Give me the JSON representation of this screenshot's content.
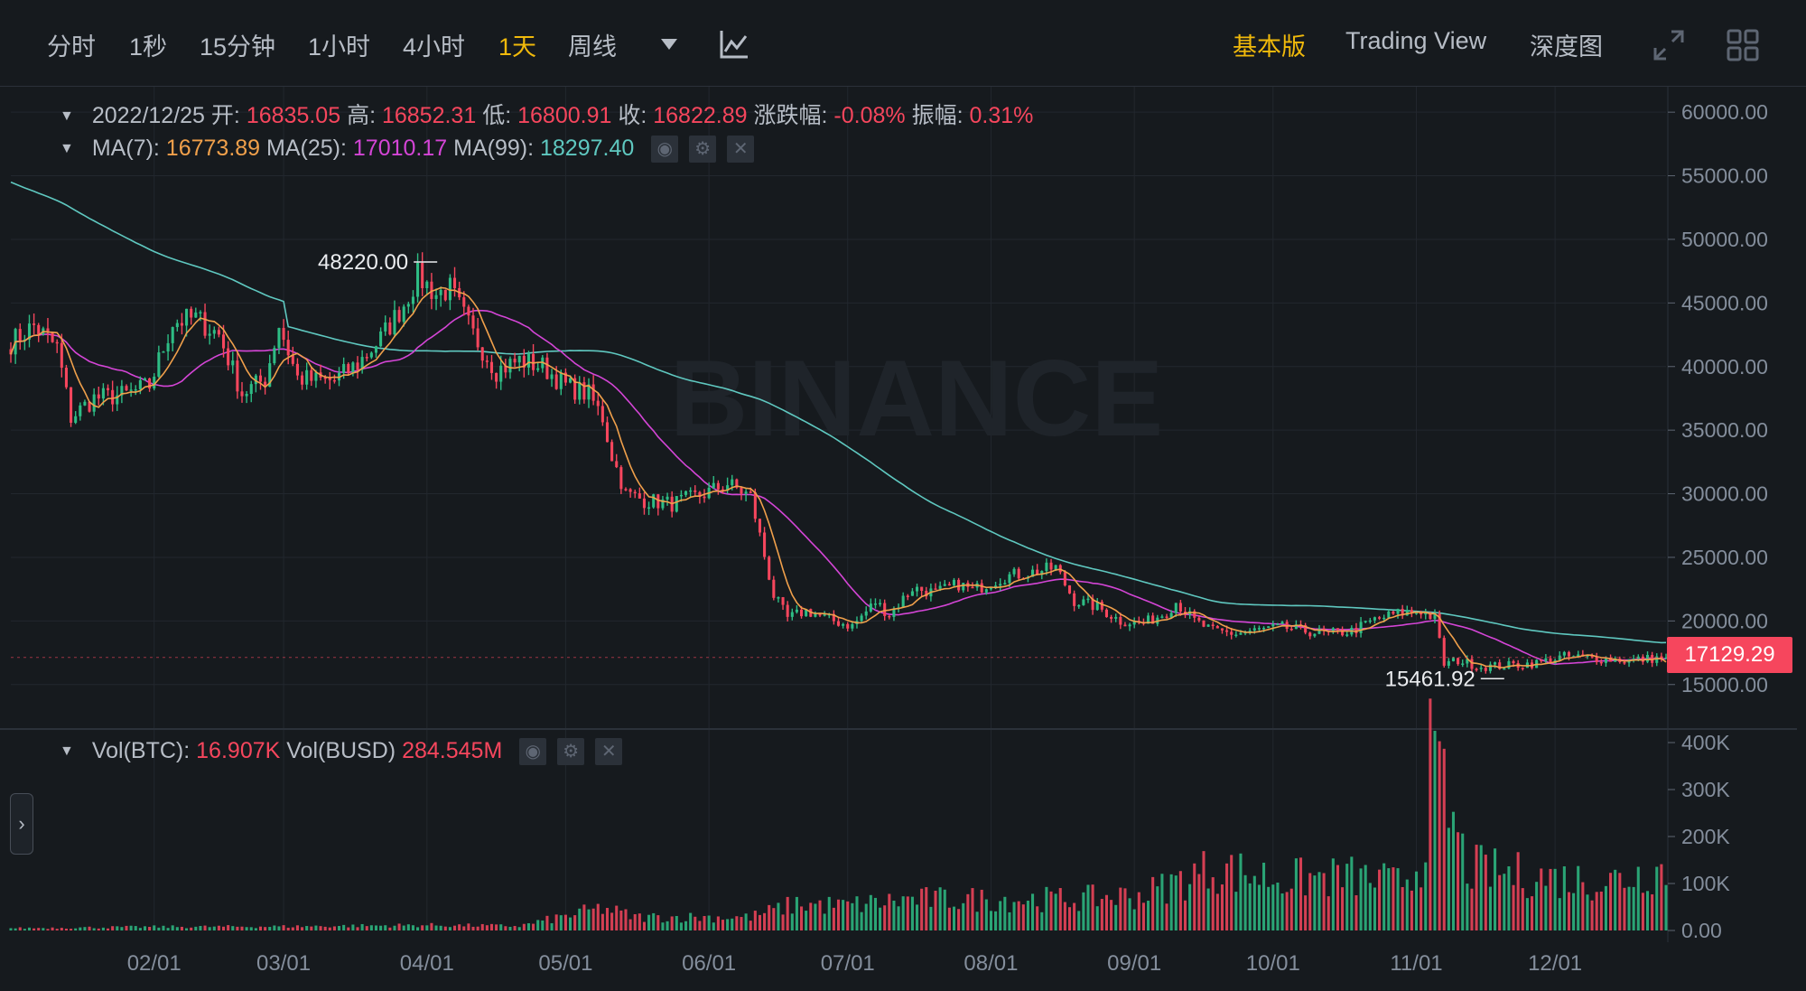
{
  "toolbar": {
    "timeframes": [
      "分时",
      "1秒",
      "15分钟",
      "1小时",
      "4小时",
      "1天",
      "周线"
    ],
    "active_timeframe": "1天",
    "views": [
      "基本版",
      "Trading View",
      "深度图"
    ],
    "active_view": "基本版",
    "icons": [
      "dropdown-caret-icon",
      "indicator-icon",
      "fullscreen-icon",
      "grid-layout-icon"
    ]
  },
  "ohlc": {
    "date": "2022/12/25",
    "open_label": "开:",
    "open": "16835.05",
    "high_label": "高:",
    "high": "16852.31",
    "low_label": "低:",
    "low": "16800.91",
    "close_label": "收:",
    "close": "16822.89",
    "change_label": "涨跌幅:",
    "change": "-0.08%",
    "amplitude_label": "振幅:",
    "amplitude": "0.31%"
  },
  "ma": {
    "ma7_label": "MA(7):",
    "ma7": "16773.89",
    "ma25_label": "MA(25):",
    "ma25": "17010.17",
    "ma99_label": "MA(99):",
    "ma99": "18297.40"
  },
  "volume": {
    "btc_label": "Vol(BTC):",
    "btc": "16.907K",
    "busd_label": "Vol(BUSD)",
    "busd": "284.545M"
  },
  "last_price": "17129.29",
  "max_label": "48220.00",
  "min_label": "15461.92",
  "watermark": "BINANCE",
  "colors": {
    "up": "#2ebd85",
    "down": "#f6465d",
    "ma7": "#f0a04b",
    "ma25": "#d445d6",
    "ma99": "#5fc8c0",
    "background": "#161a1e",
    "grid": "#22272e",
    "accent": "#f0b90b"
  },
  "chart_data": {
    "type": "candlestick",
    "title": "",
    "price_axis": {
      "ticks": [
        "60000.00",
        "55000.00",
        "50000.00",
        "45000.00",
        "40000.00",
        "35000.00",
        "30000.00",
        "25000.00",
        "20000.00",
        "15000.00"
      ],
      "range": [
        12000,
        62000
      ]
    },
    "volume_axis": {
      "ticks": [
        "400K",
        "300K",
        "200K",
        "100K",
        "0.00"
      ],
      "range": [
        0,
        400000
      ]
    },
    "x_axis": {
      "ticks": [
        {
          "label": "02/01",
          "day": 31
        },
        {
          "label": "03/01",
          "day": 59
        },
        {
          "label": "04/01",
          "day": 90
        },
        {
          "label": "05/01",
          "day": 120
        },
        {
          "label": "06/01",
          "day": 151
        },
        {
          "label": "07/01",
          "day": 181
        },
        {
          "label": "08/01",
          "day": 212
        },
        {
          "label": "09/01",
          "day": 243
        },
        {
          "label": "10/01",
          "day": 273
        },
        {
          "label": "11/01",
          "day": 304
        },
        {
          "label": "12/01",
          "day": 334
        }
      ],
      "first_day": 0,
      "last_day": 358
    },
    "close_anchors": [
      [
        0,
        41900
      ],
      [
        5,
        43200
      ],
      [
        10,
        41500
      ],
      [
        13,
        36000
      ],
      [
        18,
        37500
      ],
      [
        25,
        37800
      ],
      [
        30,
        38500
      ],
      [
        35,
        43500
      ],
      [
        40,
        43800
      ],
      [
        45,
        42500
      ],
      [
        50,
        37900
      ],
      [
        55,
        39000
      ],
      [
        58,
        43300
      ],
      [
        62,
        39100
      ],
      [
        66,
        38900
      ],
      [
        70,
        38900
      ],
      [
        75,
        40200
      ],
      [
        80,
        42200
      ],
      [
        85,
        44900
      ],
      [
        88,
        47100
      ],
      [
        92,
        45700
      ],
      [
        95,
        46100
      ],
      [
        100,
        42500
      ],
      [
        105,
        39700
      ],
      [
        110,
        40500
      ],
      [
        115,
        40000
      ],
      [
        120,
        38500
      ],
      [
        125,
        37800
      ],
      [
        128,
        36000
      ],
      [
        130,
        33000
      ],
      [
        133,
        30000
      ],
      [
        137,
        29500
      ],
      [
        143,
        29200
      ],
      [
        150,
        30000
      ],
      [
        155,
        30800
      ],
      [
        160,
        29800
      ],
      [
        165,
        22000
      ],
      [
        168,
        20200
      ],
      [
        172,
        20800
      ],
      [
        178,
        20000
      ],
      [
        182,
        19600
      ],
      [
        187,
        21500
      ],
      [
        190,
        20500
      ],
      [
        195,
        22600
      ],
      [
        200,
        22200
      ],
      [
        205,
        22900
      ],
      [
        208,
        22400
      ],
      [
        215,
        23500
      ],
      [
        222,
        23900
      ],
      [
        226,
        24200
      ],
      [
        230,
        21600
      ],
      [
        235,
        21100
      ],
      [
        240,
        20000
      ],
      [
        245,
        19800
      ],
      [
        250,
        20700
      ],
      [
        252,
        21500
      ],
      [
        256,
        20000
      ],
      [
        260,
        19200
      ],
      [
        265,
        19000
      ],
      [
        270,
        19300
      ],
      [
        275,
        19500
      ],
      [
        280,
        19200
      ],
      [
        285,
        19000
      ],
      [
        290,
        19200
      ],
      [
        295,
        20100
      ],
      [
        300,
        20600
      ],
      [
        305,
        20800
      ],
      [
        308,
        20200
      ],
      [
        310,
        16600
      ],
      [
        313,
        16900
      ],
      [
        318,
        16400
      ],
      [
        324,
        16500
      ],
      [
        330,
        16700
      ],
      [
        336,
        17200
      ],
      [
        342,
        17100
      ],
      [
        350,
        16900
      ],
      [
        358,
        17129
      ]
    ],
    "volume_anchors": [
      [
        0,
        5000
      ],
      [
        30,
        8000
      ],
      [
        60,
        9000
      ],
      [
        90,
        12000
      ],
      [
        110,
        10000
      ],
      [
        128,
        50000
      ],
      [
        135,
        30000
      ],
      [
        160,
        30000
      ],
      [
        170,
        60000
      ],
      [
        180,
        55000
      ],
      [
        195,
        70000
      ],
      [
        210,
        70000
      ],
      [
        230,
        70000
      ],
      [
        245,
        80000
      ],
      [
        260,
        140000
      ],
      [
        275,
        115000
      ],
      [
        290,
        120000
      ],
      [
        300,
        105000
      ],
      [
        305,
        150000
      ],
      [
        307,
        370000
      ],
      [
        310,
        300000
      ],
      [
        315,
        140000
      ],
      [
        330,
        120000
      ],
      [
        345,
        110000
      ],
      [
        358,
        140000
      ]
    ],
    "ma7_last": 16773.89,
    "ma25_last": 17010.17,
    "ma99_last": 18297.4,
    "high_marker": {
      "day": 93,
      "value": 48220.0
    },
    "low_marker": {
      "day": 323,
      "value": 15461.92
    }
  }
}
